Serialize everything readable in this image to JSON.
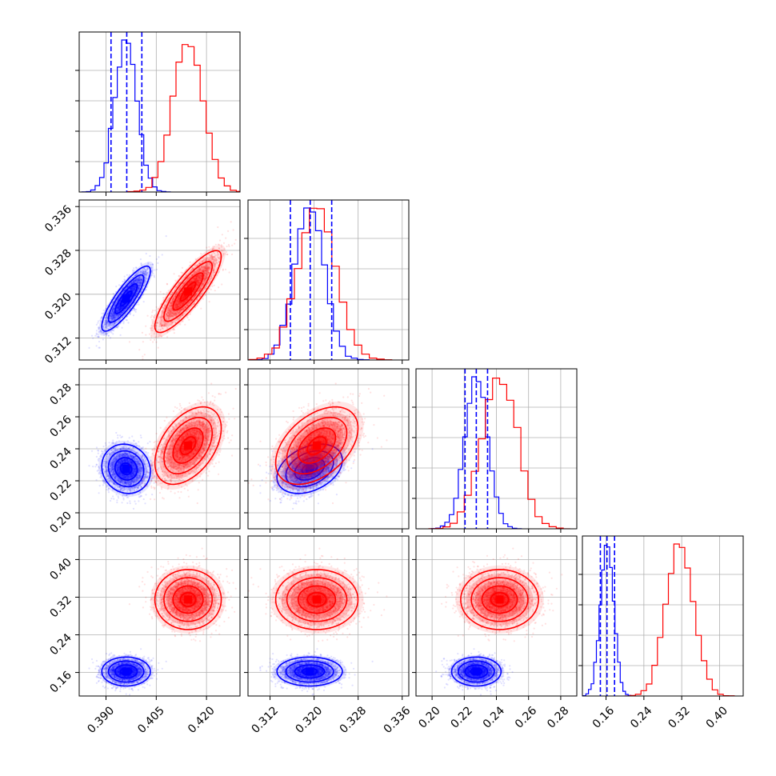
{
  "chart_data": {
    "type": "scatter",
    "title": "",
    "parameters": [
      {
        "range": [
          0.382,
          0.43
        ],
        "ticks": [
          "0.390",
          "0.405",
          "0.420"
        ],
        "tick_values": [
          0.39,
          0.405,
          0.42
        ]
      },
      {
        "range": [
          0.308,
          0.3372
        ],
        "ticks": [
          "0.312",
          "0.320",
          "0.328",
          "0.336"
        ],
        "tick_values": [
          0.312,
          0.32,
          0.328,
          0.336
        ]
      },
      {
        "range": [
          0.19,
          0.29
        ],
        "ticks": [
          "0.20",
          "0.22",
          "0.24",
          "0.26",
          "0.28"
        ],
        "tick_values": [
          0.2,
          0.22,
          0.24,
          0.26,
          0.28
        ]
      },
      {
        "range": [
          0.11,
          0.45
        ],
        "ticks": [
          "0.16",
          "0.24",
          "0.32",
          "0.40"
        ],
        "tick_values": [
          0.16,
          0.24,
          0.32,
          0.4
        ]
      }
    ],
    "series": [
      {
        "color": "#0000ff",
        "mean": [
          0.396,
          0.3192,
          0.2275,
          0.162
        ],
        "sd": [
          0.0033,
          0.0027,
          0.007,
          0.014
        ],
        "corr": [
          [
            1,
            0.85,
            -0.1,
            0
          ],
          [
            0.85,
            1,
            0.35,
            0
          ],
          [
            -0.1,
            0.35,
            1,
            0
          ],
          [
            0,
            0,
            0,
            1
          ]
        ],
        "quantiles": [
          [
            0.3915,
            0.3962,
            0.4007
          ],
          [
            0.3157,
            0.3193,
            0.3232
          ],
          [
            0.2205,
            0.2275,
            0.2345
          ],
          [
            0.148,
            0.162,
            0.178
          ]
        ]
      },
      {
        "color": "#ff0000",
        "mean": [
          0.4145,
          0.3205,
          0.242,
          0.315
        ],
        "sd": [
          0.0045,
          0.0034,
          0.011,
          0.029
        ],
        "corr": [
          [
            1,
            0.85,
            0.45,
            0
          ],
          [
            0.85,
            1,
            0.45,
            0
          ],
          [
            0.45,
            0.45,
            1,
            0
          ],
          [
            0,
            0,
            0,
            1
          ]
        ],
        "quantiles": []
      }
    ],
    "histogram_bins": 20,
    "grid": true,
    "legend": "none"
  }
}
